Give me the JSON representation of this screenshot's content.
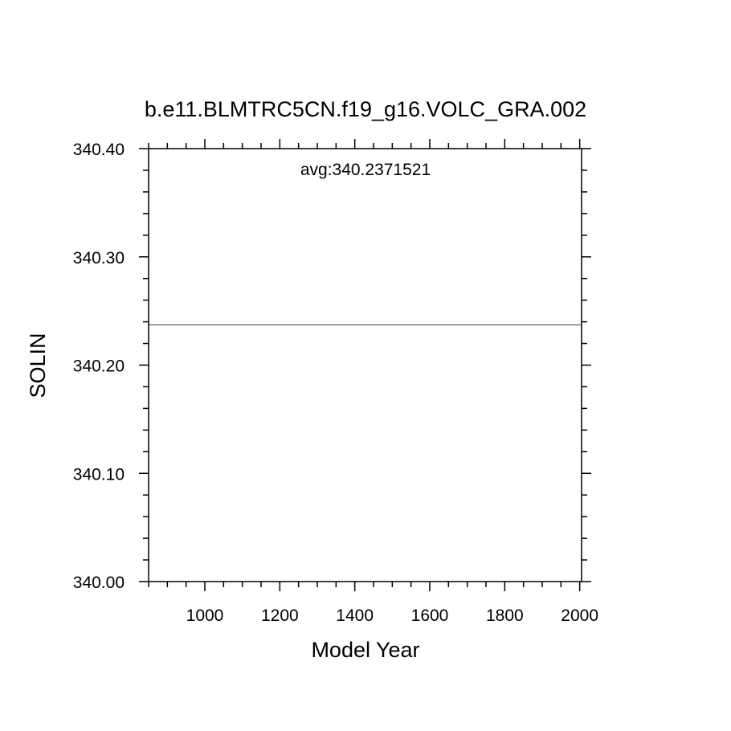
{
  "chart_data": {
    "type": "line",
    "title": "b.e11.BLMTRC5CN.f19_g16.VOLC_GRA.002",
    "xlabel": "Model Year",
    "ylabel": "SOLIN",
    "annotation": "avg:340.2371521",
    "xlim": [
      850,
      2005
    ],
    "ylim": [
      340.0,
      340.4
    ],
    "x_ticks": [
      "1000",
      "1200",
      "1400",
      "1600",
      "1800",
      "2000"
    ],
    "y_ticks": [
      "340.00",
      "340.10",
      "340.20",
      "340.30",
      "340.40"
    ],
    "grid": false,
    "series": [
      {
        "x": [
          850,
          2005
        ],
        "values": [
          340.2371521,
          340.2371521
        ],
        "color": "#555555"
      }
    ]
  }
}
